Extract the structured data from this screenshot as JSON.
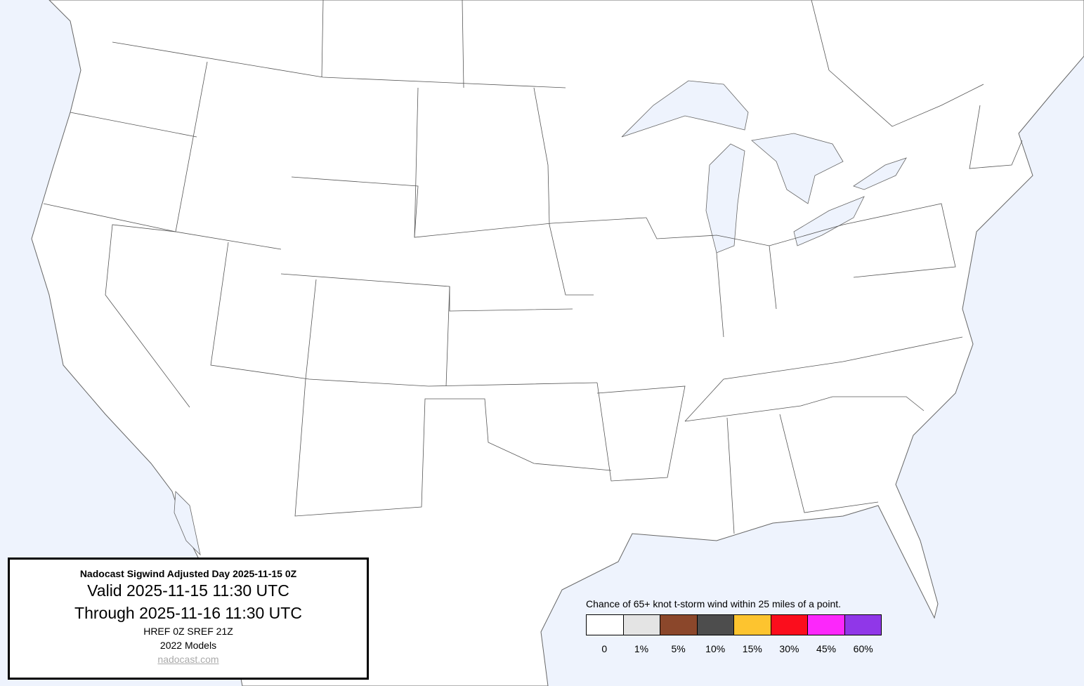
{
  "title_box": {
    "title": "Nadocast Sigwind Adjusted Day 2025-11-15 0Z",
    "valid": "Valid 2025-11-15 11:30 UTC",
    "through": "Through 2025-11-16 11:30 UTC",
    "models_run": "HREF 0Z SREF 21Z",
    "models_version": "2022 Models",
    "link": "nadocast.com"
  },
  "legend": {
    "caption": "Chance of 65+ knot t-storm wind within 25 miles of a point.",
    "items": [
      {
        "label": "0",
        "color": "#ffffff"
      },
      {
        "label": "1%",
        "color": "#e4e4e4"
      },
      {
        "label": "5%",
        "color": "#8b472b"
      },
      {
        "label": "10%",
        "color": "#4d4d4d"
      },
      {
        "label": "15%",
        "color": "#fdc42f"
      },
      {
        "label": "30%",
        "color": "#fb0d1c"
      },
      {
        "label": "45%",
        "color": "#fc27fb"
      },
      {
        "label": "60%",
        "color": "#9037e8"
      }
    ]
  },
  "colors": {
    "water": "#eef3fd",
    "land": "#ffffff",
    "borders": "#555555"
  }
}
